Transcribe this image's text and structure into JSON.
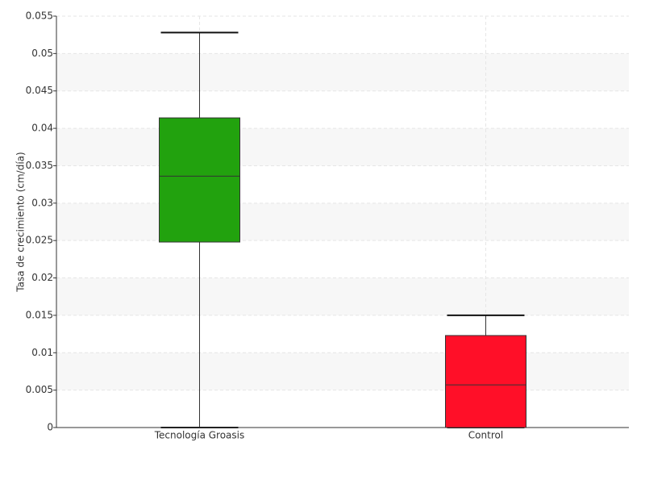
{
  "chart_data": {
    "type": "box",
    "y_label": "Tasa de crecimiento (cm/día)",
    "categories": [
      "Tecnología Groasis",
      "Control"
    ],
    "min": [
      0,
      0
    ],
    "q1": [
      0.0248,
      0
    ],
    "median": [
      0.0336,
      0.0057
    ],
    "q3": [
      0.0414,
      0.0123
    ],
    "max": [
      0.0528,
      0.015
    ],
    "colors": [
      "#22a20e",
      "#ff0f28"
    ],
    "ylim": [
      0,
      0.055
    ],
    "yticks": [
      0,
      0.005,
      0.01,
      0.015,
      0.02,
      0.025,
      0.03,
      0.035,
      0.04,
      0.045,
      0.05,
      0.055
    ],
    "grid": true
  }
}
